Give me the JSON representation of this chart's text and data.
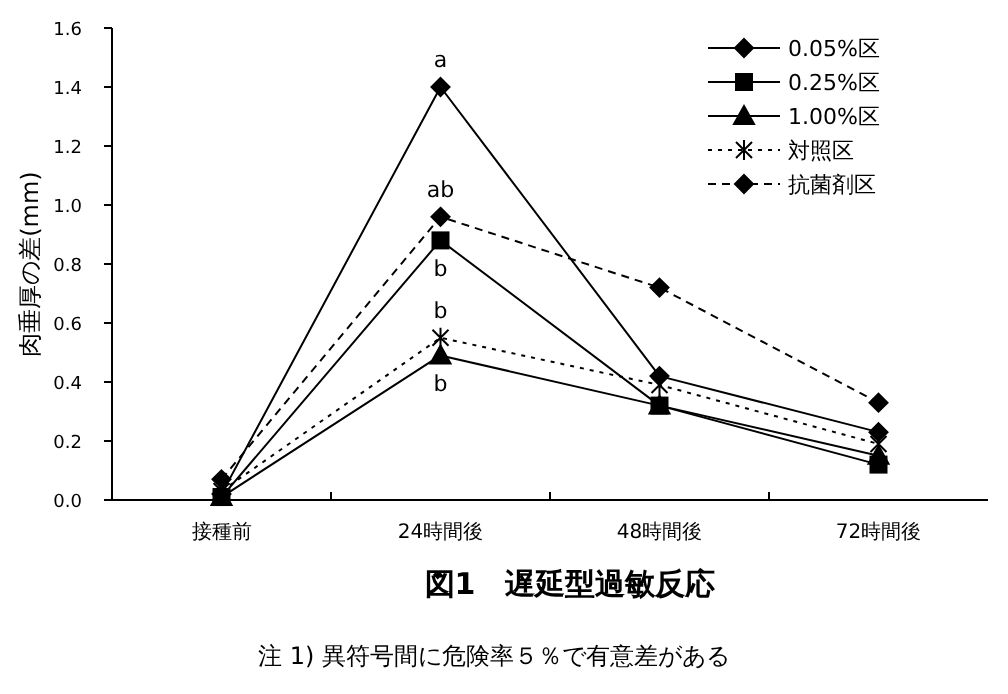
{
  "chart_data": {
    "type": "line",
    "title": "図1　遅延型過敏反応",
    "ylabel": "肉垂厚の差(mm)",
    "categories": [
      "接種前",
      "24時間後",
      "48時間後",
      "72時間後"
    ],
    "series": [
      {
        "name": "0.05%区",
        "color": "#000000",
        "marker": "diamond",
        "line_style": "solid",
        "values": [
          0.02,
          1.4,
          0.42,
          0.23
        ]
      },
      {
        "name": "0.25%区",
        "color": "#000000",
        "marker": "square",
        "line_style": "solid",
        "values": [
          0.01,
          0.88,
          0.32,
          0.12
        ]
      },
      {
        "name": "1.00%区",
        "color": "#000000",
        "marker": "triangle",
        "line_style": "solid",
        "values": [
          0.01,
          0.49,
          0.32,
          0.15
        ]
      },
      {
        "name": "対照区",
        "color": "#000000",
        "marker": "cross",
        "line_style": "dotted",
        "values": [
          0.03,
          0.55,
          0.39,
          0.19
        ]
      },
      {
        "name": "抗菌剤区",
        "color": "#000000",
        "marker": "diamond",
        "line_style": "dashed",
        "values": [
          0.07,
          0.96,
          0.72,
          0.33
        ]
      }
    ],
    "ylim": [
      0,
      1.6
    ],
    "yticks": [
      {
        "value": 0,
        "label": "0.0"
      },
      {
        "value": 0.2,
        "label": "0.2"
      },
      {
        "value": 0.4,
        "label": "0.4"
      },
      {
        "value": 0.6,
        "label": "0.6"
      },
      {
        "value": 0.8,
        "label": "0.8"
      },
      {
        "value": 1,
        "label": "1.0"
      },
      {
        "value": 1.2,
        "label": "1.2"
      },
      {
        "value": 1.4,
        "label": "1.4"
      },
      {
        "value": 1.6,
        "label": "1.6"
      }
    ],
    "grid": false,
    "legend": "top right",
    "annotations": [
      {
        "text": "a",
        "x": "24時間後",
        "y": 1.4
      },
      {
        "text": "ab",
        "x": "24時間後",
        "y": 0.96
      },
      {
        "text": "b",
        "x": "24時間後",
        "y": 0.88
      },
      {
        "text": "b",
        "x": "24時間後",
        "y": 0.55
      },
      {
        "text": "b",
        "x": "24時間後",
        "y": 0.49
      },
      "注 1)  異符号間に危険率５％で有意差がある"
    ]
  }
}
